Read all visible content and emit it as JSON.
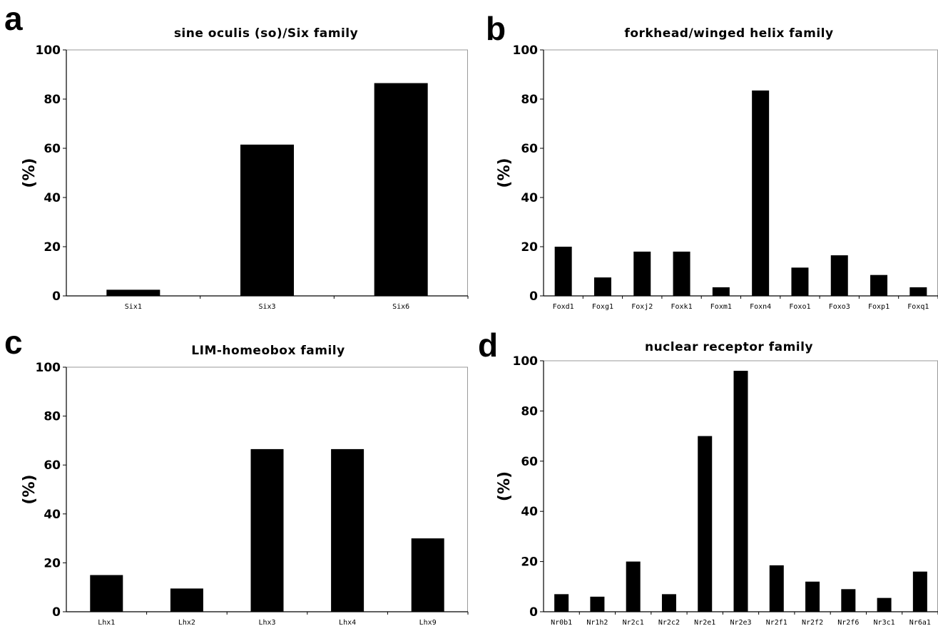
{
  "colors": {
    "bar": "#000000",
    "axis": "#000000",
    "frame": "#9a9a9a",
    "background": "#ffffff"
  },
  "chart_data": [
    {
      "panel": "a",
      "type": "bar",
      "title": "sine oculis (so)/Six family",
      "ylabel": "(%)",
      "xlabel": "",
      "ylim": [
        0,
        100
      ],
      "yticks": [
        0,
        20,
        40,
        60,
        80,
        100
      ],
      "categories": [
        "Six1",
        "Six3",
        "Six6"
      ],
      "values": [
        2.5,
        61.5,
        86.5
      ],
      "grid": false
    },
    {
      "panel": "b",
      "type": "bar",
      "title": "forkhead/winged helix family",
      "ylabel": "(%)",
      "xlabel": "",
      "ylim": [
        0,
        100
      ],
      "yticks": [
        0,
        20,
        40,
        60,
        80,
        100
      ],
      "categories": [
        "Foxd1",
        "Foxg1",
        "Foxj2",
        "Foxk1",
        "Foxm1",
        "Foxn4",
        "Foxo1",
        "Foxo3",
        "Foxp1",
        "Foxq1"
      ],
      "values": [
        20,
        7.5,
        18,
        18,
        3.5,
        83.5,
        11.5,
        16.5,
        8.5,
        3.5
      ],
      "grid": false
    },
    {
      "panel": "c",
      "type": "bar",
      "title": "LIM-homeobox family",
      "ylabel": "(%)",
      "xlabel": "",
      "ylim": [
        0,
        100
      ],
      "yticks": [
        0,
        20,
        40,
        60,
        80,
        100
      ],
      "categories": [
        "Lhx1",
        "Lhx2",
        "Lhx3",
        "Lhx4",
        "Lhx9"
      ],
      "values": [
        15,
        9.5,
        66.5,
        66.5,
        30
      ],
      "grid": false
    },
    {
      "panel": "d",
      "type": "bar",
      "title": "nuclear receptor family",
      "ylabel": "(%)",
      "xlabel": "",
      "ylim": [
        0,
        100
      ],
      "yticks": [
        0,
        20,
        40,
        60,
        80,
        100
      ],
      "categories": [
        "Nr0b1",
        "Nr1h2",
        "Nr2c1",
        "Nr2c2",
        "Nr2e1",
        "Nr2e3",
        "Nr2f1",
        "Nr2f2",
        "Nr2f6",
        "Nr3c1",
        "Nr6a1"
      ],
      "values": [
        7,
        6,
        20,
        7,
        70,
        96,
        18.5,
        12,
        9,
        5.5,
        16
      ],
      "grid": false
    }
  ]
}
